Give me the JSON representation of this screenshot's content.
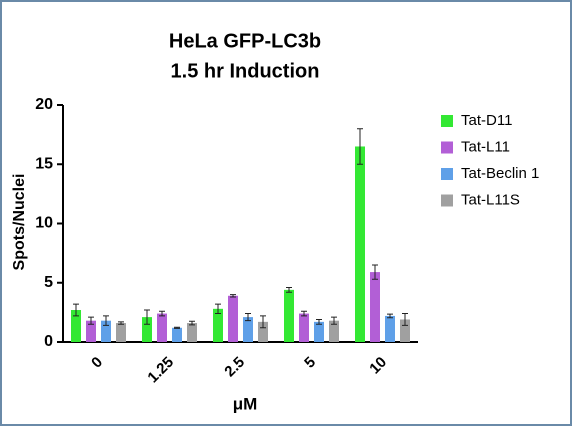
{
  "chart_data": {
    "type": "bar",
    "title": "HeLa GFP-LC3b",
    "subtitle": "1.5 hr Induction",
    "x_label": "μM",
    "y_label": "Spots/Nuclei",
    "categories": [
      "0",
      "1.25",
      "2.5",
      "5",
      "10"
    ],
    "series": [
      {
        "name": "Tat-D11",
        "color": "#33e833",
        "values": [
          2.7,
          2.1,
          2.8,
          4.4,
          16.5
        ],
        "errors": [
          0.5,
          0.6,
          0.4,
          0.2,
          1.5
        ]
      },
      {
        "name": "Tat-L11",
        "color": "#b25fd6",
        "values": [
          1.8,
          2.4,
          3.9,
          2.4,
          5.9
        ],
        "errors": [
          0.3,
          0.2,
          0.1,
          0.2,
          0.6
        ]
      },
      {
        "name": "Tat-Beclin 1",
        "color": "#5fa0e8",
        "values": [
          1.8,
          1.2,
          2.1,
          1.7,
          2.2
        ],
        "errors": [
          0.4,
          0.05,
          0.3,
          0.2,
          0.15
        ]
      },
      {
        "name": "Tat-L11S",
        "color": "#a0a0a0",
        "values": [
          1.6,
          1.6,
          1.7,
          1.8,
          1.9
        ],
        "errors": [
          0.1,
          0.15,
          0.5,
          0.3,
          0.5
        ]
      }
    ],
    "ylim": [
      0,
      20
    ],
    "yticks": [
      0,
      5,
      10,
      15,
      20
    ],
    "grid": false,
    "legend": "right"
  }
}
